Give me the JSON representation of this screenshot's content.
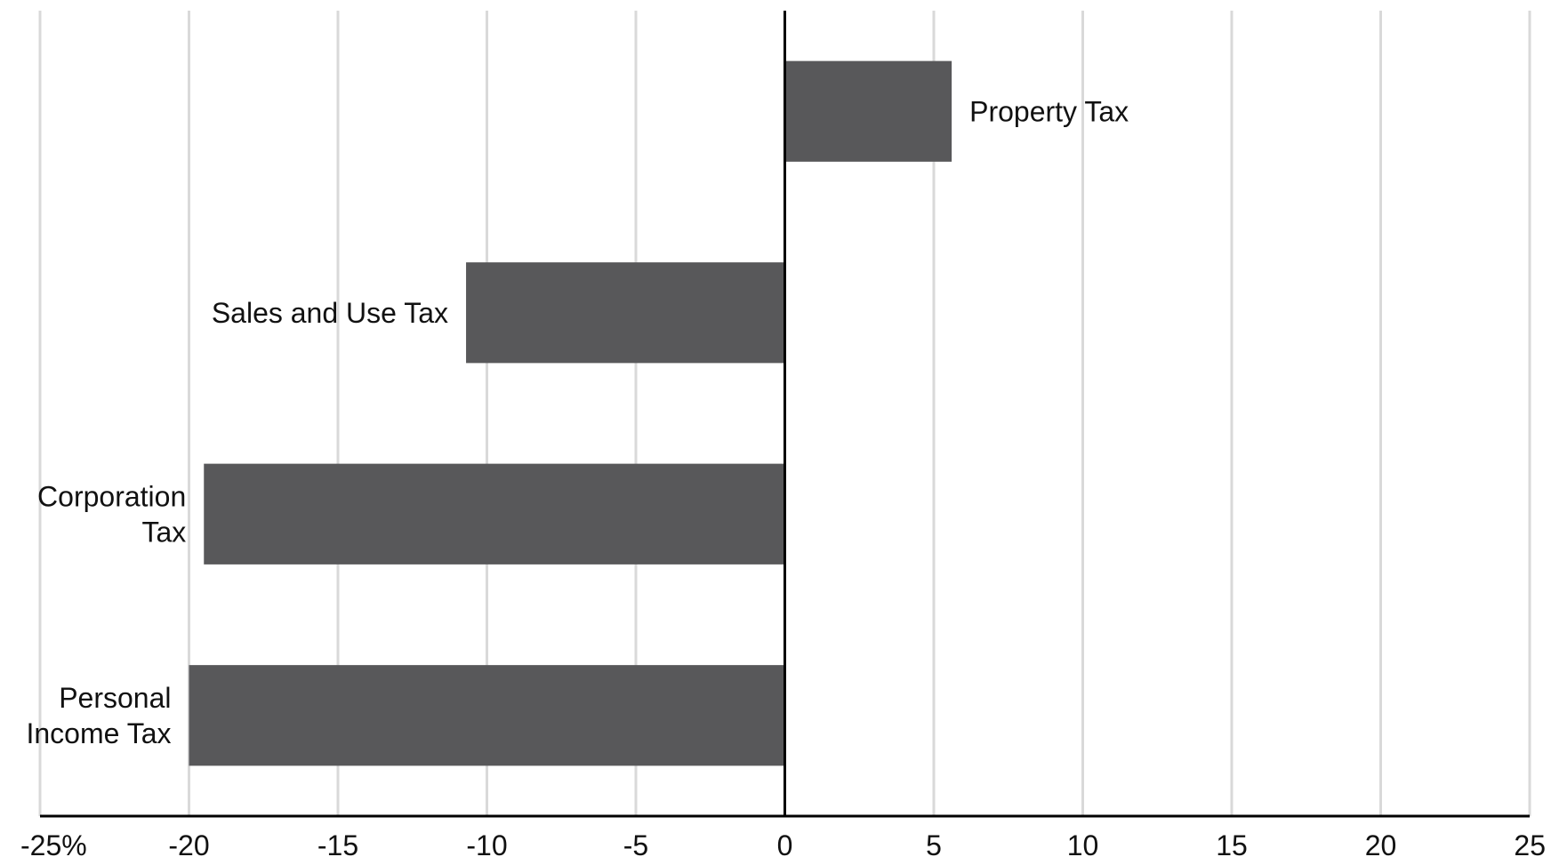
{
  "chart_data": {
    "type": "bar",
    "orientation": "horizontal",
    "title": "",
    "xlabel": "",
    "ylabel": "",
    "categories": [
      "Property Tax",
      "Sales and Use Tax",
      "Corporation Tax",
      "Personal Income Tax"
    ],
    "category_labels": [
      [
        "Property Tax"
      ],
      [
        "Sales and Use Tax"
      ],
      [
        "Corporation",
        "Tax"
      ],
      [
        "Personal",
        "Income Tax"
      ]
    ],
    "values": [
      5.6,
      -10.7,
      -19.5,
      -20.0
    ],
    "xlim": [
      -25,
      25
    ],
    "x_ticks": [
      -25,
      -20,
      -15,
      -10,
      -5,
      0,
      5,
      10,
      15,
      20,
      25
    ],
    "x_tick_labels": [
      "-25%",
      "-20",
      "-15",
      "-10",
      "-5",
      "0",
      "5",
      "10",
      "15",
      "20",
      "25"
    ],
    "grid": true,
    "legend": "none",
    "colors": {
      "bar": "#58585a",
      "grid": "#d9d9d9",
      "axis": "#000000",
      "text": "#111111"
    }
  }
}
